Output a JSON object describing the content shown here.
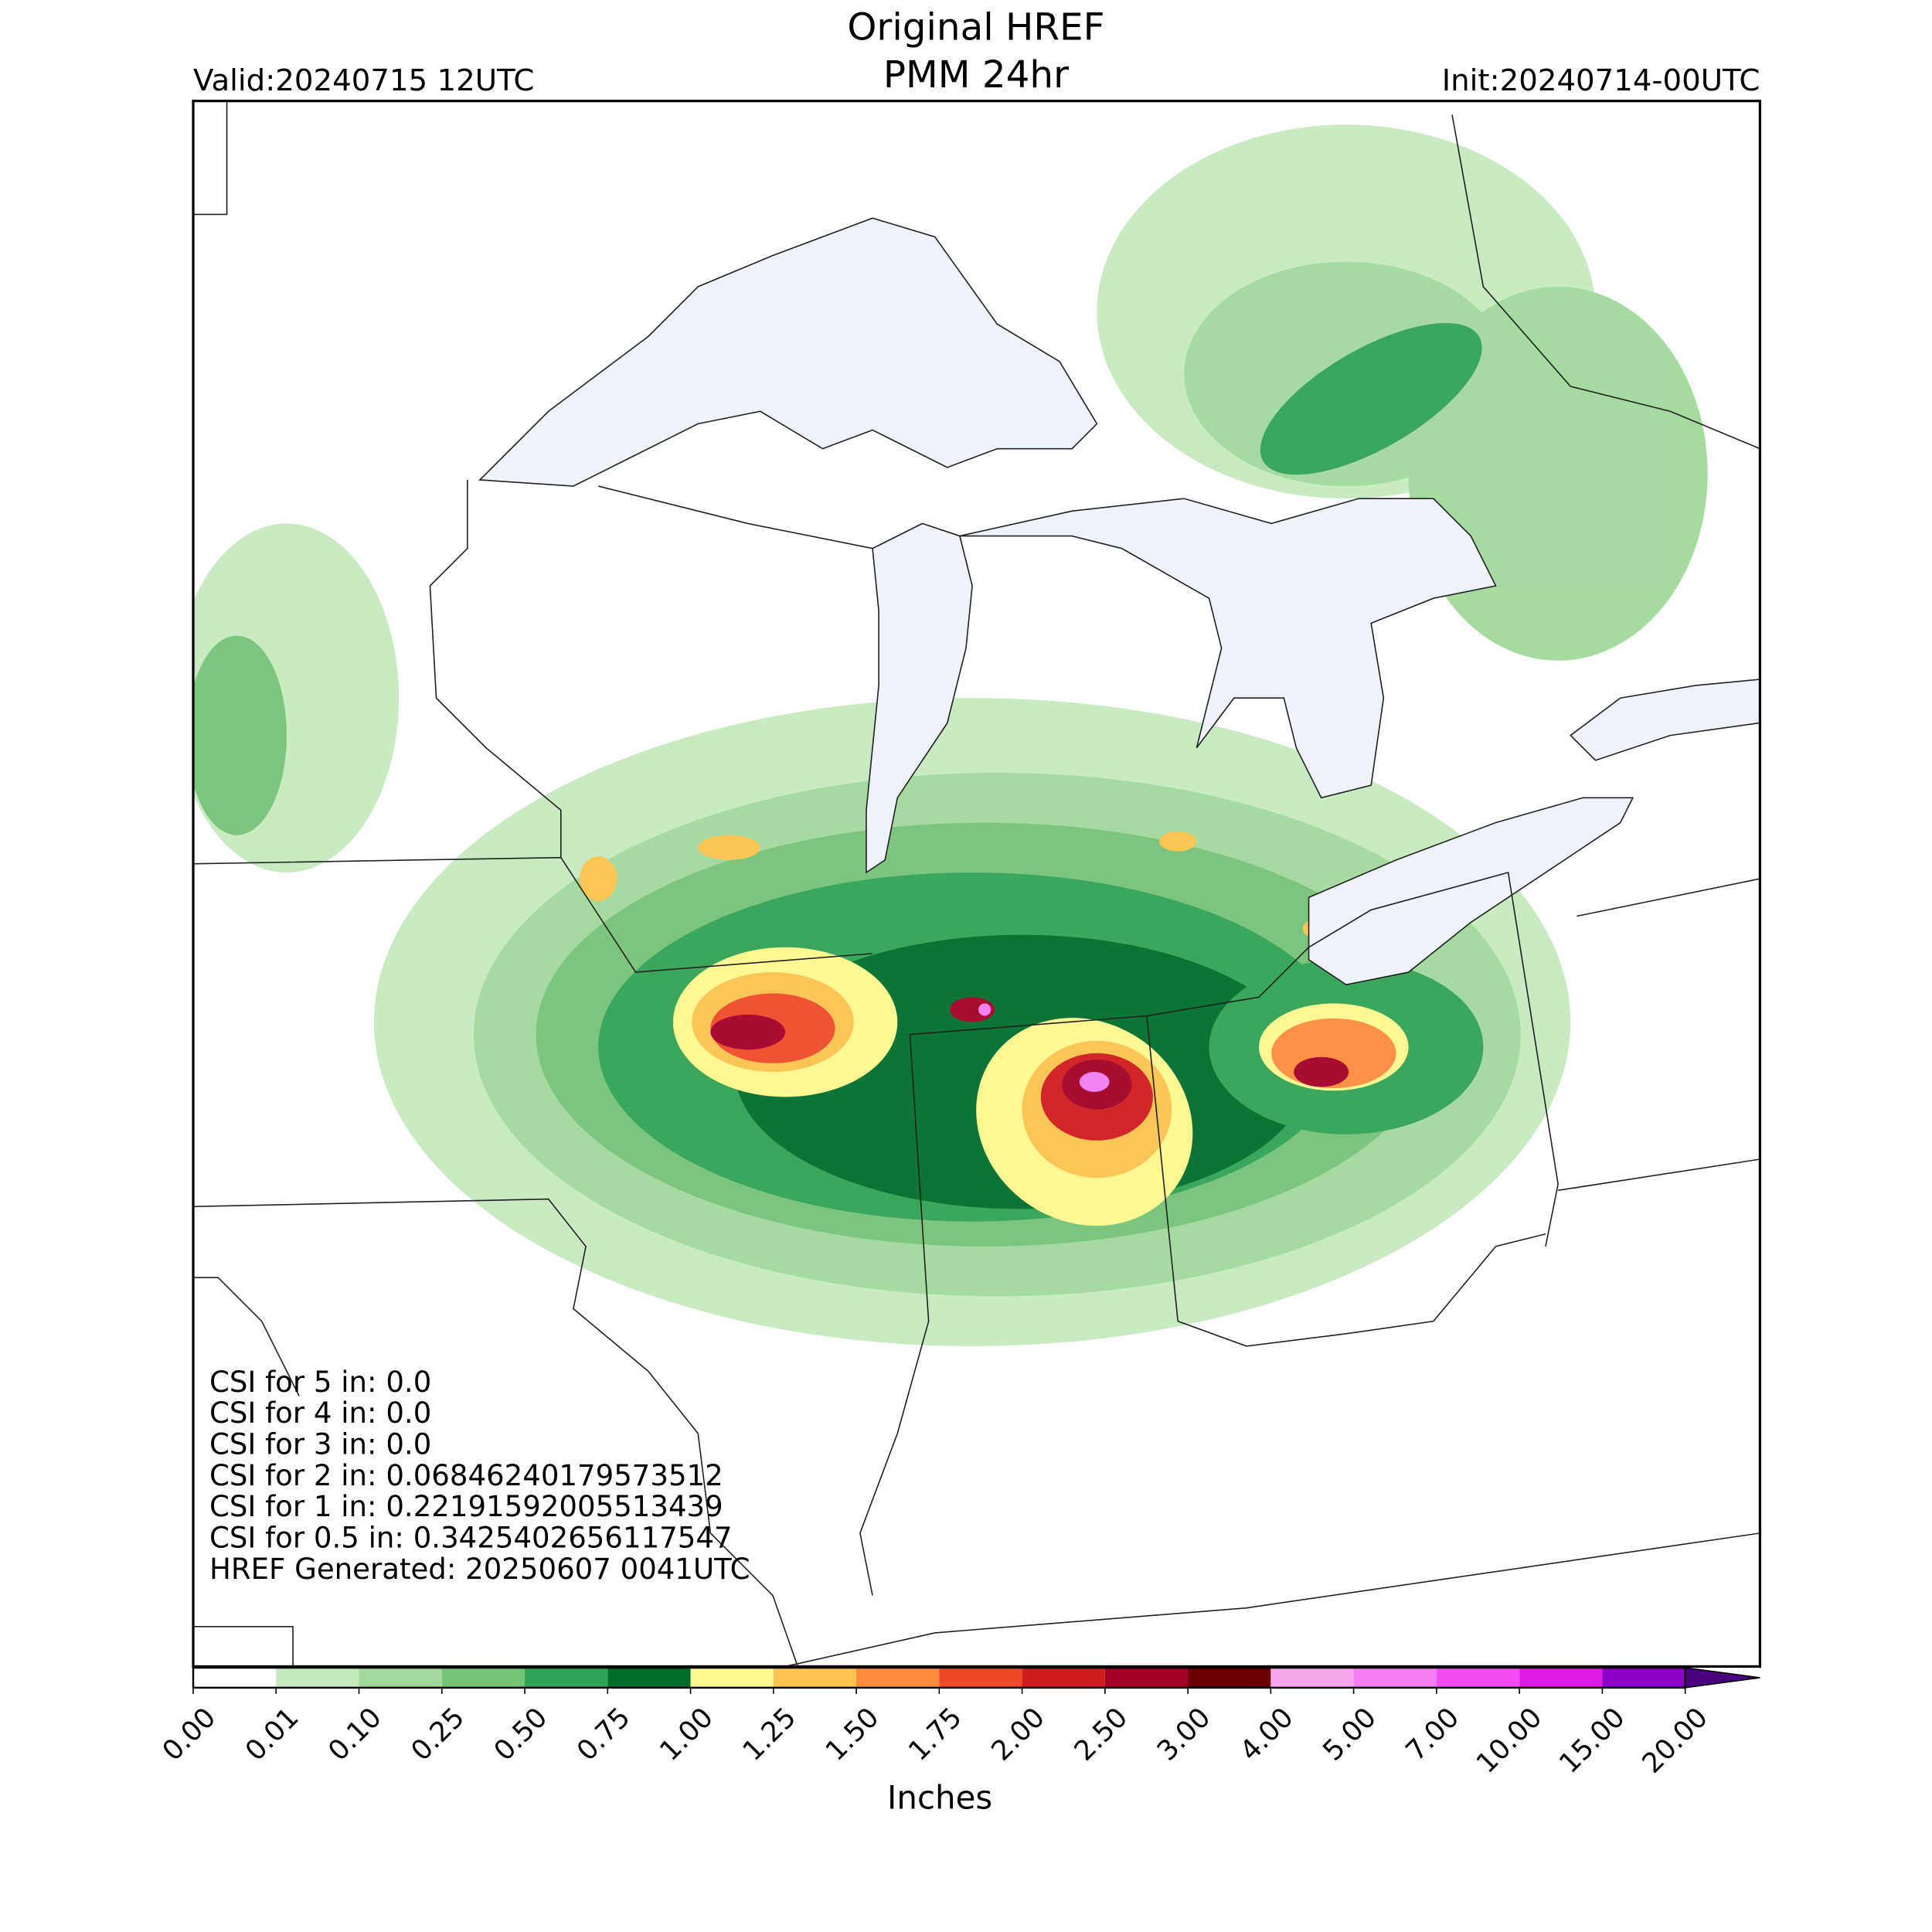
{
  "header": {
    "title": "Original HREF",
    "subtitle": "PMM 24hr",
    "valid": "Valid:20240715 12UTC",
    "init": "Init:20240714-00UTC"
  },
  "stats": [
    "CSI for 5 in: 0.0",
    "CSI for 4 in: 0.0",
    "CSI for 3 in: 0.0",
    "CSI for 2 in: 0.06846240179573512",
    "CSI for 1 in: 0.22191592005513439",
    "CSI for 0.5 in: 0.3425402656117547",
    "HREF Generated: 20250607 0041UTC"
  ],
  "colorbar": {
    "label": "Inches",
    "ticks": [
      "0.00",
      "0.01",
      "0.10",
      "0.25",
      "0.50",
      "0.75",
      "1.00",
      "1.25",
      "1.50",
      "1.75",
      "2.00",
      "2.50",
      "3.00",
      "4.00",
      "5.00",
      "7.00",
      "10.00",
      "15.00",
      "20.00"
    ],
    "colors": [
      "#ffffff",
      "#c7e9c0",
      "#a1d99b",
      "#74c476",
      "#31a354",
      "#006d2c",
      "#fff68f",
      "#fcc44d",
      "#fd8c3c",
      "#f0492a",
      "#d01c1e",
      "#a50026",
      "#6b0000",
      "#f7a6ee",
      "#f27cf2",
      "#f34cf3",
      "#e11be6",
      "#8d00c9"
    ],
    "extend_color": "#4b0082"
  }
}
